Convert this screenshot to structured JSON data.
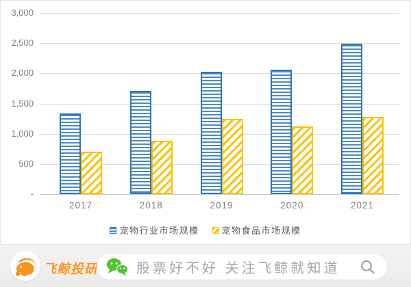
{
  "chart_data": {
    "type": "bar",
    "categories": [
      "2017",
      "2018",
      "2019",
      "2020",
      "2021"
    ],
    "series": [
      {
        "name": "宠物行业市场规模",
        "values": [
          1340,
          1708,
          2024,
          2065,
          2490
        ],
        "border_color": "#2E75B6",
        "stripe_color": "#4A89C7",
        "pattern": "horizontal-stripes"
      },
      {
        "name": "宠物食品市场规模",
        "values": [
          700,
          880,
          1240,
          1120,
          1280
        ],
        "border_color": "#FFC000",
        "stripe_color": "#FFC000",
        "pattern": "diagonal-stripes"
      }
    ],
    "title": "",
    "xlabel": "",
    "ylabel": "",
    "ylim": [
      0,
      3000
    ],
    "ytick_labels": [
      "3,000",
      "2,500",
      "2,000",
      "1,500",
      "1,000",
      "500",
      "-"
    ],
    "grid": true,
    "legend_position": "bottom"
  },
  "colors": {
    "gridline": "#d9d9d9",
    "axis_text": "#7f7f7f",
    "legend_text": "#595959",
    "banner_bg": "#f1f0ee",
    "brand_orange": "#f7941e",
    "wechat_green": "#51c332",
    "pill_text": "#a6a6a6"
  },
  "banner": {
    "brand": "飞鲸投研",
    "tagline": "股票好不好 关注飞鲸就知道",
    "icons": {
      "logo": "whale-icon",
      "chat": "wechat-icon",
      "search": "search-icon"
    }
  }
}
